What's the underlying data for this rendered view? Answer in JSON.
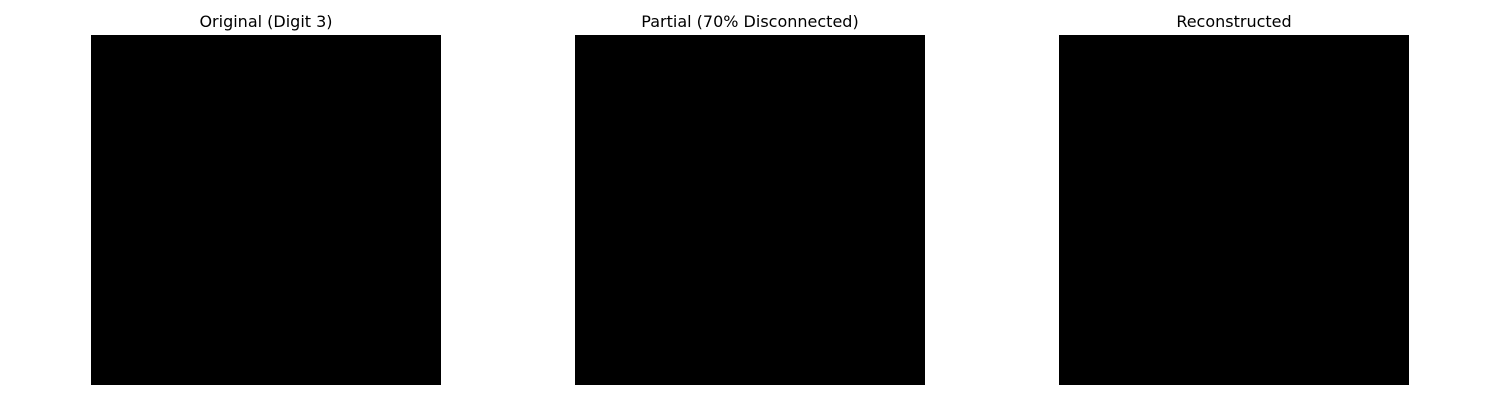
{
  "chart_data": [
    {
      "type": "heatmap",
      "title": "Original (Digit 3)",
      "grid": false,
      "axes": "off",
      "colormap": "gray",
      "vrange": [
        0,
        1
      ],
      "rows": [
        "............................",
        "............................",
        "............................",
        "...........................",
        "...........................",
        "...........................",
        "...........................",
        "...........................",
        "...........................",
        "...........................",
        "...........................",
        "...........................",
        "...........................",
        "...........................",
        "...........................",
        "...........................",
        "...........................",
        "...........................",
        "...........................",
        "...........................",
        "...........................",
        "...........................",
        "...........................",
        "...........................",
        "...........................",
        "...........................",
        "...........................",
        "..........................."
      ]
    },
    {
      "type": "heatmap",
      "title": "Partial (70% Disconnected)",
      "grid": false,
      "axes": "off",
      "colormap": "gray",
      "vrange": [
        0,
        1
      ],
      "rows": []
    },
    {
      "type": "heatmap",
      "title": "Reconstructed",
      "grid": false,
      "axes": "off",
      "colormap": "gray",
      "vrange": [
        0,
        1
      ],
      "rows": []
    }
  ]
}
